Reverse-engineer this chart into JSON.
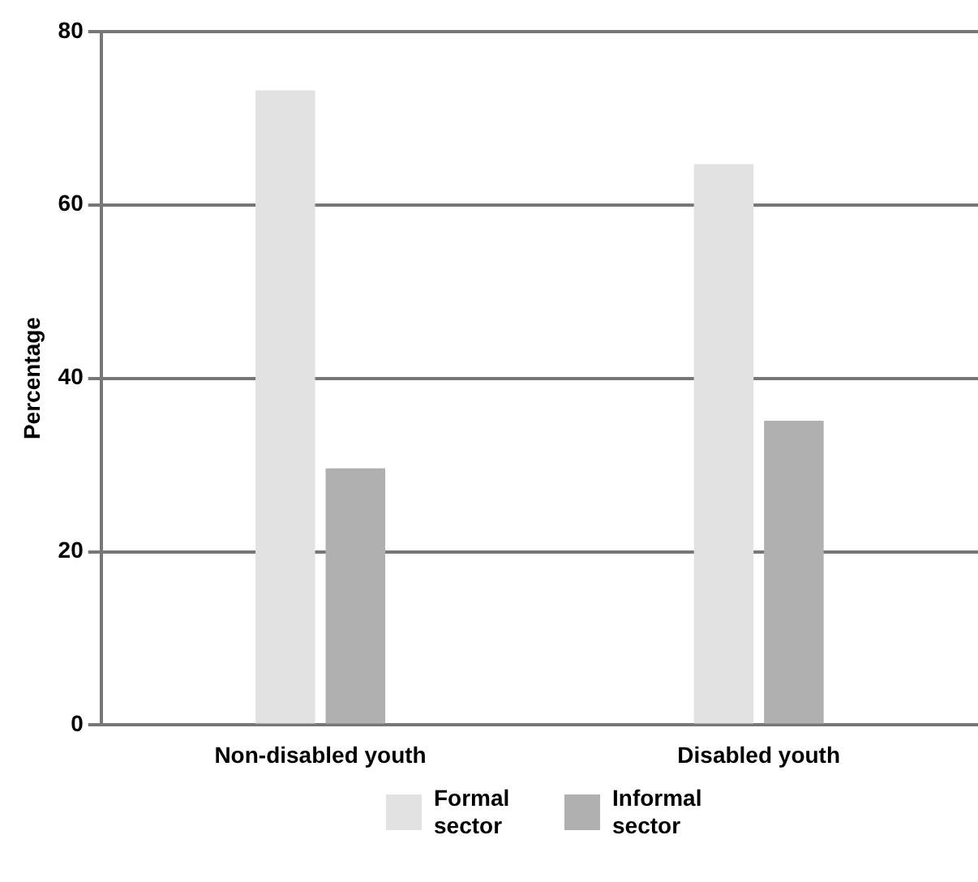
{
  "chart_data": {
    "type": "bar",
    "ylabel": "Percentage",
    "categories": [
      "Non-disabled youth",
      "Disabled youth"
    ],
    "series": [
      {
        "name": "Formal sector",
        "color": "#e2e2e2",
        "values": [
          73.2,
          64.7
        ]
      },
      {
        "name": "Informal sector",
        "color": "#b0b0b0",
        "values": [
          29.6,
          35.1
        ]
      }
    ],
    "ylim": [
      0,
      80
    ],
    "yticks": [
      0,
      20,
      40,
      60,
      80
    ],
    "grid": "y",
    "legend": "bottom"
  }
}
